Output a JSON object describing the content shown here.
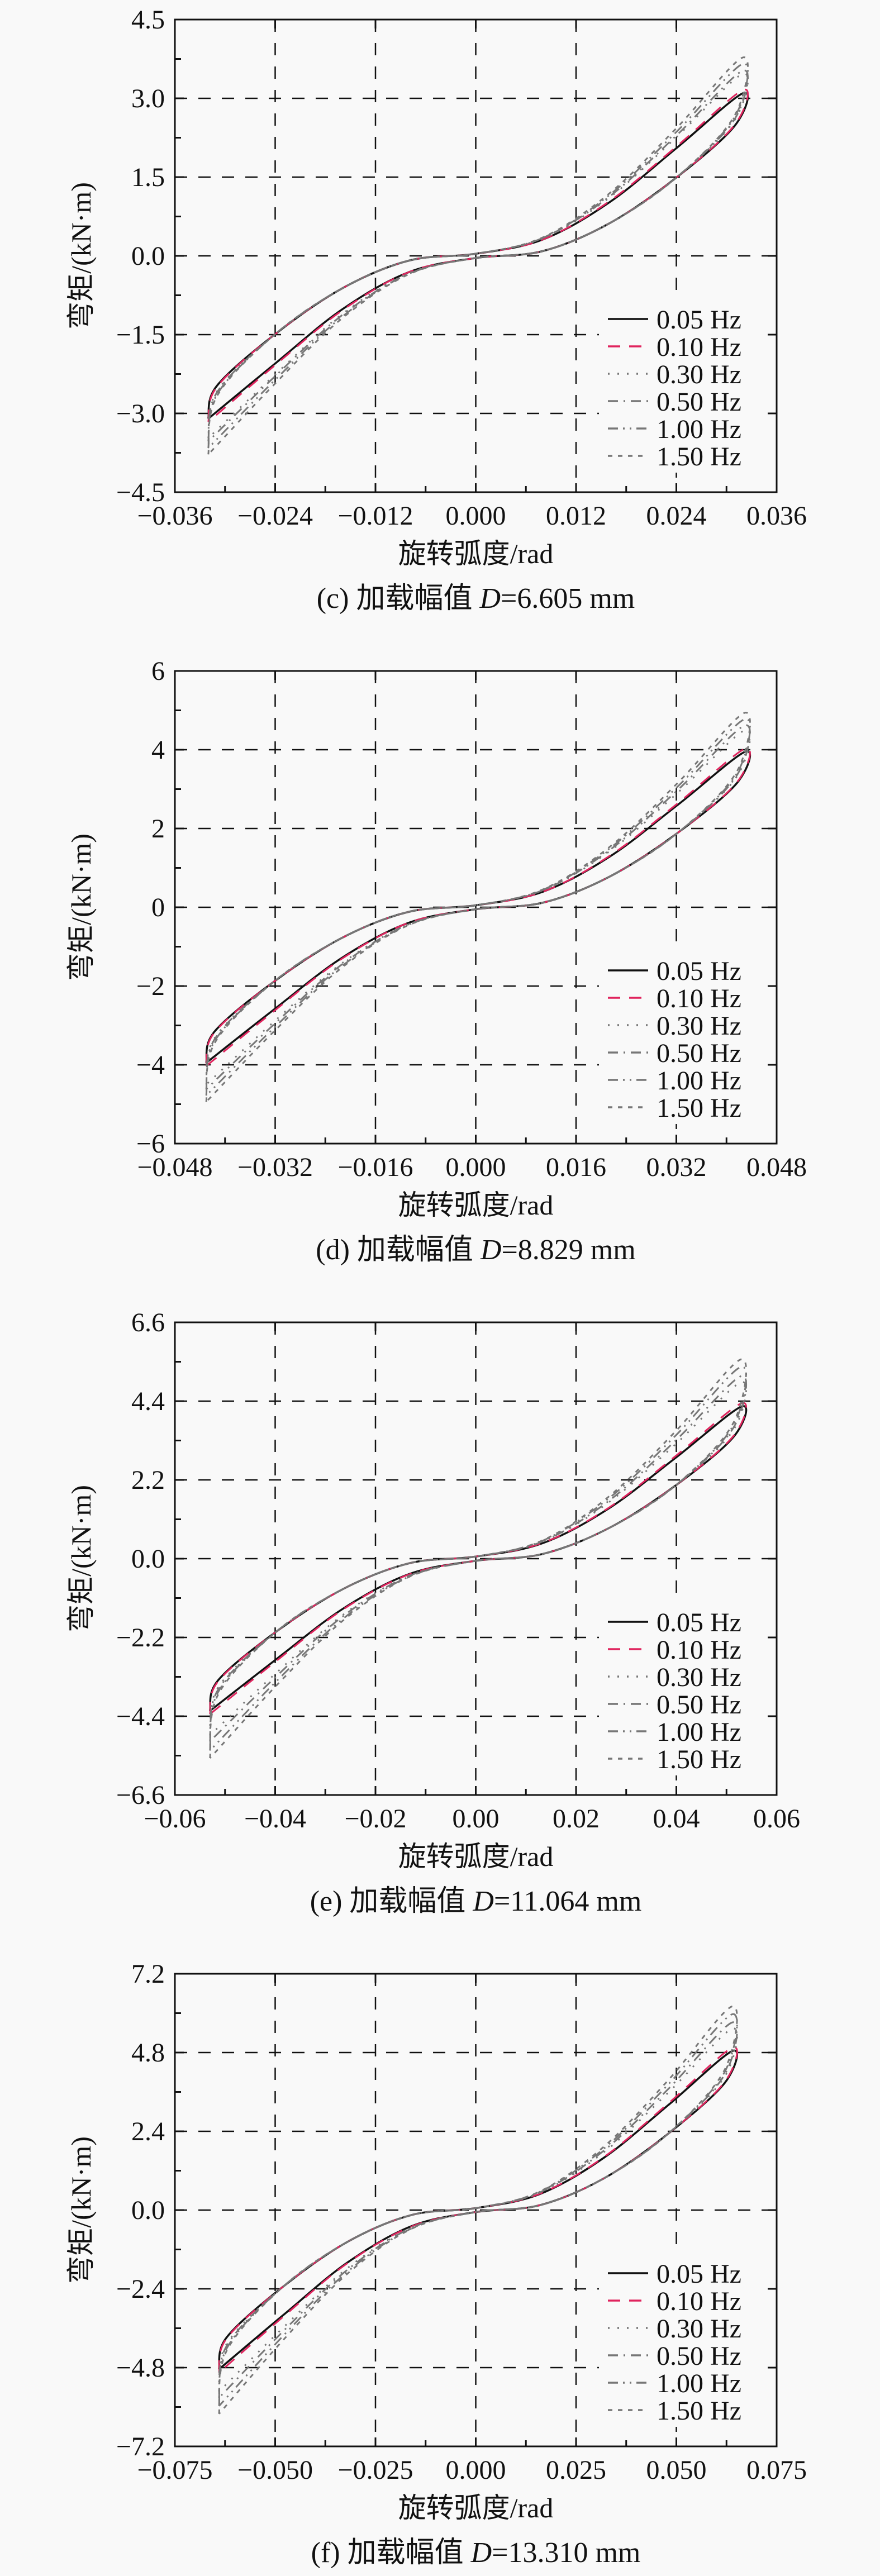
{
  "chart_data": [
    {
      "type": "line",
      "panel": "c",
      "caption": {
        "prefix": "(c) 加载幅值 ",
        "var": "D",
        "suffix": "=6.605 mm"
      },
      "xlabel": "旋转弧度/rad",
      "ylabel": "弯矩/(kN·m)",
      "xlim": [
        -0.036,
        0.036
      ],
      "ylim": [
        -4.5,
        4.5
      ],
      "xticks": [
        -0.036,
        -0.024,
        -0.012,
        0,
        0.012,
        0.024,
        0.036
      ],
      "xtick_labels": [
        "−0.036",
        "−0.024",
        "−0.012",
        "0.000",
        "0.012",
        "0.024",
        "0.036"
      ],
      "yticks": [
        -4.5,
        -3.0,
        -1.5,
        0,
        1.5,
        3.0,
        4.5
      ],
      "ytick_labels": [
        "−4.5",
        "−3.0",
        "−1.5",
        "0.0",
        "1.5",
        "3.0",
        "4.5"
      ],
      "grid": true,
      "legend_position": "bottom-right",
      "x": [
        -0.032,
        -0.031,
        -0.024,
        -0.016,
        -0.008,
        0,
        0.008,
        0.016,
        0.024,
        0.032,
        0.031,
        0.024,
        0.016,
        0.008,
        0,
        -0.008,
        -0.016,
        -0.024,
        -0.032
      ],
      "series": [
        {
          "name": "0.05 Hz",
          "values": [
            -3.1,
            -2.48,
            -1.49,
            -0.62,
            -0.09,
            0.04,
            0.31,
            1.02,
            2.05,
            3.1,
            2.48,
            1.49,
            0.62,
            0.09,
            -0.04,
            -0.31,
            -1.02,
            -2.05,
            -3.1
          ]
        },
        {
          "name": "0.10 Hz",
          "values": [
            -3.16,
            -2.5,
            -1.49,
            -0.62,
            -0.09,
            0.04,
            0.31,
            1.04,
            2.08,
            3.16,
            2.5,
            1.49,
            0.62,
            0.09,
            -0.04,
            -0.31,
            -1.04,
            -2.08,
            -3.16
          ]
        },
        {
          "name": "0.30 Hz",
          "values": [
            -3.47,
            -2.59,
            -1.49,
            -0.62,
            -0.09,
            0.04,
            0.33,
            1.11,
            2.26,
            3.47,
            2.59,
            1.49,
            0.62,
            0.09,
            -0.04,
            -0.33,
            -1.11,
            -2.26,
            -3.47
          ]
        },
        {
          "name": "0.50 Hz",
          "values": [
            -3.53,
            -2.61,
            -1.49,
            -0.62,
            -0.09,
            0.04,
            0.34,
            1.13,
            2.29,
            3.53,
            2.61,
            1.49,
            0.62,
            0.09,
            -0.04,
            -0.34,
            -1.13,
            -2.29,
            -3.53
          ]
        },
        {
          "name": "1.00 Hz",
          "values": [
            -3.66,
            -2.65,
            -1.49,
            -0.62,
            -0.09,
            0.04,
            0.34,
            1.16,
            2.36,
            3.66,
            2.65,
            1.49,
            0.62,
            0.09,
            -0.04,
            -0.34,
            -1.16,
            -2.36,
            -3.66
          ]
        },
        {
          "name": "1.50 Hz",
          "values": [
            -3.78,
            -2.68,
            -1.49,
            -0.62,
            -0.09,
            0.04,
            0.35,
            1.19,
            2.43,
            3.78,
            2.68,
            1.49,
            0.62,
            0.09,
            -0.04,
            -0.35,
            -1.19,
            -2.43,
            -3.78
          ]
        }
      ]
    },
    {
      "type": "line",
      "panel": "d",
      "caption": {
        "prefix": "(d) 加载幅值 ",
        "var": "D",
        "suffix": "=8.829 mm"
      },
      "xlabel": "旋转弧度/rad",
      "ylabel": "弯矩/(kN·m)",
      "xlim": [
        -0.048,
        0.048
      ],
      "ylim": [
        -6,
        6
      ],
      "xticks": [
        -0.048,
        -0.032,
        -0.016,
        0,
        0.016,
        0.032,
        0.048
      ],
      "xtick_labels": [
        "−0.048",
        "−0.032",
        "−0.016",
        "0.000",
        "0.016",
        "0.032",
        "0.048"
      ],
      "yticks": [
        -6,
        -4,
        -2,
        0,
        2,
        4,
        6
      ],
      "ytick_labels": [
        "−6",
        "−4",
        "−2",
        "0",
        "2",
        "4",
        "6"
      ],
      "grid": true,
      "legend_position": "bottom-right",
      "x": [
        -0.043,
        -0.0417,
        -0.0323,
        -0.0215,
        -0.0108,
        0,
        0.0108,
        0.0215,
        0.0323,
        0.043,
        0.0417,
        0.0323,
        0.0215,
        0.0108,
        0,
        -0.0108,
        -0.0215,
        -0.0323,
        -0.043
      ],
      "series": [
        {
          "name": "0.05 Hz",
          "values": [
            -3.95,
            -3.16,
            -1.9,
            -0.79,
            -0.12,
            0.05,
            0.4,
            1.3,
            2.61,
            3.95,
            3.16,
            1.9,
            0.79,
            0.12,
            -0.05,
            -0.4,
            -1.3,
            -2.61,
            -3.95
          ]
        },
        {
          "name": "0.10 Hz",
          "values": [
            -4.03,
            -3.18,
            -1.9,
            -0.79,
            -0.12,
            0.05,
            0.4,
            1.32,
            2.65,
            4.03,
            3.18,
            1.9,
            0.79,
            0.12,
            -0.05,
            -0.4,
            -1.32,
            -2.65,
            -4.03
          ]
        },
        {
          "name": "0.30 Hz",
          "values": [
            -4.5,
            -3.33,
            -1.9,
            -0.79,
            -0.12,
            0.05,
            0.44,
            1.44,
            2.92,
            4.5,
            3.33,
            1.9,
            0.79,
            0.12,
            -0.05,
            -0.44,
            -1.44,
            -2.92,
            -4.5
          ]
        },
        {
          "name": "0.50 Hz",
          "values": [
            -4.62,
            -3.36,
            -1.9,
            -0.79,
            -0.12,
            0.05,
            0.44,
            1.47,
            2.99,
            4.62,
            3.36,
            1.9,
            0.79,
            0.12,
            -0.05,
            -0.44,
            -1.47,
            -2.99,
            -4.62
          ]
        },
        {
          "name": "1.00 Hz",
          "values": [
            -4.78,
            -3.41,
            -1.9,
            -0.79,
            -0.12,
            0.05,
            0.45,
            1.51,
            3.08,
            4.78,
            3.41,
            1.9,
            0.79,
            0.12,
            -0.05,
            -0.45,
            -1.51,
            -3.08,
            -4.78
          ]
        },
        {
          "name": "1.50 Hz",
          "values": [
            -4.94,
            -3.46,
            -1.9,
            -0.79,
            -0.12,
            0.05,
            0.46,
            1.55,
            3.17,
            4.94,
            3.46,
            1.9,
            0.79,
            0.12,
            -0.05,
            -0.46,
            -1.55,
            -3.17,
            -4.94
          ]
        }
      ]
    },
    {
      "type": "line",
      "panel": "e",
      "caption": {
        "prefix": "(e) 加载幅值 ",
        "var": "D",
        "suffix": "=11.064 mm"
      },
      "xlabel": "旋转弧度/rad",
      "ylabel": "弯矩/(kN·m)",
      "xlim": [
        -0.06,
        0.06
      ],
      "ylim": [
        -6.6,
        6.6
      ],
      "xticks": [
        -0.06,
        -0.04,
        -0.02,
        0,
        0.02,
        0.04,
        0.06
      ],
      "xtick_labels": [
        "−0.06",
        "−0.04",
        "−0.02",
        "0.00",
        "0.02",
        "0.04",
        "0.06"
      ],
      "yticks": [
        -6.6,
        -4.4,
        -2.2,
        0,
        2.2,
        4.4,
        6.6
      ],
      "ytick_labels": [
        "−6.6",
        "−4.4",
        "−2.2",
        "0.0",
        "2.2",
        "4.4",
        "6.6"
      ],
      "grid": true,
      "legend_position": "bottom-right",
      "x": [
        -0.053,
        -0.0514,
        -0.0398,
        -0.0265,
        -0.0133,
        0,
        0.0133,
        0.0265,
        0.0398,
        0.053,
        0.0514,
        0.0398,
        0.0265,
        0.0133,
        0,
        -0.0133,
        -0.0265,
        -0.0398,
        -0.053
      ],
      "series": [
        {
          "name": "0.05 Hz",
          "values": [
            -4.25,
            -3.4,
            -2.04,
            -0.85,
            -0.13,
            0.06,
            0.43,
            1.4,
            2.81,
            4.25,
            3.4,
            2.04,
            0.85,
            0.13,
            -0.06,
            -0.43,
            -1.4,
            -2.81,
            -4.25
          ]
        },
        {
          "name": "0.10 Hz",
          "values": [
            -4.34,
            -3.43,
            -2.04,
            -0.85,
            -0.13,
            0.06,
            0.44,
            1.42,
            2.86,
            4.34,
            3.43,
            2.04,
            0.85,
            0.13,
            -0.06,
            -0.44,
            -1.42,
            -2.86,
            -4.34
          ]
        },
        {
          "name": "0.30 Hz",
          "values": [
            -4.93,
            -3.6,
            -2.04,
            -0.85,
            -0.13,
            0.06,
            0.47,
            1.57,
            3.19,
            4.93,
            3.6,
            2.04,
            0.85,
            0.13,
            -0.06,
            -0.47,
            -1.57,
            -3.19,
            -4.93
          ]
        },
        {
          "name": "0.50 Hz",
          "values": [
            -5.1,
            -3.66,
            -2.04,
            -0.85,
            -0.13,
            0.06,
            0.48,
            1.61,
            3.29,
            5.1,
            3.66,
            2.04,
            0.85,
            0.13,
            -0.06,
            -0.48,
            -1.61,
            -3.29,
            -5.1
          ]
        },
        {
          "name": "1.00 Hz",
          "values": [
            -5.36,
            -3.73,
            -2.04,
            -0.85,
            -0.13,
            0.06,
            0.5,
            1.68,
            3.43,
            5.36,
            3.73,
            2.04,
            0.85,
            0.13,
            -0.06,
            -0.5,
            -1.68,
            -3.43,
            -5.36
          ]
        },
        {
          "name": "1.50 Hz",
          "values": [
            -5.57,
            -3.8,
            -2.04,
            -0.85,
            -0.13,
            0.06,
            0.51,
            1.73,
            3.55,
            5.57,
            3.8,
            2.04,
            0.85,
            0.13,
            -0.06,
            -0.51,
            -1.73,
            -3.55,
            -5.57
          ]
        }
      ]
    },
    {
      "type": "line",
      "panel": "f",
      "caption": {
        "prefix": "(f) 加载幅值 ",
        "var": "D",
        "suffix": "=13.310 mm"
      },
      "xlabel": "旋转弧度/rad",
      "ylabel": "弯矩/(kN·m)",
      "xlim": [
        -0.075,
        0.075
      ],
      "ylim": [
        -7.2,
        7.2
      ],
      "xticks": [
        -0.075,
        -0.05,
        -0.025,
        0,
        0.025,
        0.05,
        0.075
      ],
      "xtick_labels": [
        "−0.075",
        "−0.050",
        "−0.025",
        "0.000",
        "0.025",
        "0.050",
        "0.075"
      ],
      "yticks": [
        -7.2,
        -4.8,
        -2.4,
        0,
        2.4,
        4.8,
        7.2
      ],
      "ytick_labels": [
        "−7.2",
        "−4.8",
        "−2.4",
        "0.0",
        "2.4",
        "4.8",
        "7.2"
      ],
      "grid": true,
      "legend_position": "bottom-right",
      "x": [
        -0.064,
        -0.0621,
        -0.048,
        -0.032,
        -0.016,
        0,
        0.016,
        0.032,
        0.048,
        0.064,
        0.0621,
        0.048,
        0.032,
        0.016,
        0,
        -0.016,
        -0.032,
        -0.048,
        -0.064
      ],
      "series": [
        {
          "name": "0.05 Hz",
          "values": [
            -4.85,
            -3.88,
            -2.33,
            -0.97,
            -0.15,
            0.06,
            0.49,
            1.6,
            3.2,
            4.85,
            3.88,
            2.33,
            0.97,
            0.15,
            -0.06,
            -0.49,
            -1.6,
            -3.2,
            -4.85
          ]
        },
        {
          "name": "0.10 Hz",
          "values": [
            -4.95,
            -3.91,
            -2.33,
            -0.97,
            -0.15,
            0.06,
            0.5,
            1.62,
            3.25,
            4.95,
            3.91,
            2.33,
            0.97,
            0.15,
            -0.06,
            -0.5,
            -1.62,
            -3.25,
            -4.95
          ]
        },
        {
          "name": "0.30 Hz",
          "values": [
            -5.53,
            -4.08,
            -2.33,
            -0.97,
            -0.15,
            0.06,
            0.53,
            1.77,
            3.58,
            5.53,
            4.08,
            2.33,
            0.97,
            0.15,
            -0.06,
            -0.53,
            -1.77,
            -3.58,
            -5.53
          ]
        },
        {
          "name": "0.50 Hz",
          "values": [
            -5.72,
            -4.14,
            -2.33,
            -0.97,
            -0.15,
            0.06,
            0.54,
            1.82,
            3.69,
            5.72,
            4.14,
            2.33,
            0.97,
            0.15,
            -0.06,
            -0.54,
            -1.82,
            -3.69,
            -5.72
          ]
        },
        {
          "name": "1.00 Hz",
          "values": [
            -5.97,
            -4.22,
            -2.33,
            -0.97,
            -0.15,
            0.06,
            0.56,
            1.88,
            3.83,
            5.97,
            4.22,
            2.33,
            0.97,
            0.15,
            -0.06,
            -0.56,
            -1.88,
            -3.83,
            -5.97
          ]
        },
        {
          "name": "1.50 Hz",
          "values": [
            -6.21,
            -4.29,
            -2.33,
            -0.97,
            -0.15,
            0.06,
            0.57,
            1.94,
            3.96,
            6.21,
            4.29,
            2.33,
            0.97,
            0.15,
            -0.06,
            -0.57,
            -1.94,
            -3.96,
            -6.21
          ]
        }
      ]
    }
  ],
  "series_styles": [
    {
      "color": "#111111",
      "dash": "solid"
    },
    {
      "color": "#e0245e",
      "dash": "long-dash"
    },
    {
      "color": "#777777",
      "dash": "dot"
    },
    {
      "color": "#777777",
      "dash": "dash-dot"
    },
    {
      "color": "#777777",
      "dash": "dash-dot-dot"
    },
    {
      "color": "#777777",
      "dash": "short-dash"
    }
  ]
}
